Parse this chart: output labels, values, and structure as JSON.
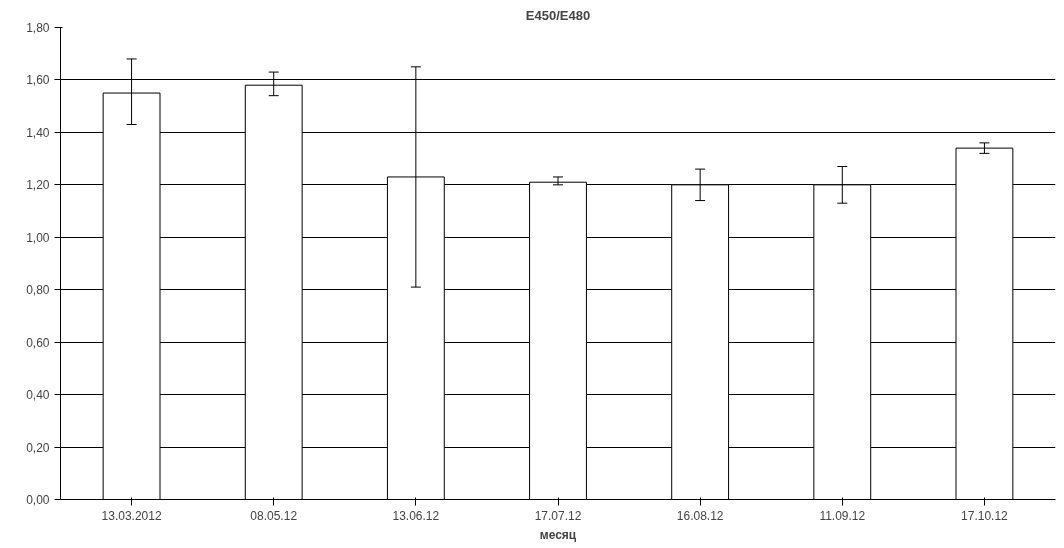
{
  "chart_data": {
    "type": "bar",
    "title": "E450/E480",
    "xlabel": "месяц",
    "categories": [
      "13.03.2012",
      "08.05.12",
      "13.06.12",
      "17.07.12",
      "16.08.12",
      "11.09.12",
      "17.10.12"
    ],
    "values": [
      1.55,
      1.58,
      1.23,
      1.21,
      1.2,
      1.2,
      1.34
    ],
    "errors": [
      [
        1.43,
        1.68
      ],
      [
        1.54,
        1.63
      ],
      [
        0.81,
        1.65
      ],
      [
        1.2,
        1.23
      ],
      [
        1.14,
        1.26
      ],
      [
        1.13,
        1.27
      ],
      [
        1.32,
        1.36
      ]
    ],
    "color": "#ffffff",
    "ylim": [
      0,
      1.8
    ],
    "yticks": [
      {
        "value": 0,
        "label": "0,00"
      },
      {
        "value": 0.2,
        "label": "0,20"
      },
      {
        "value": 0.4,
        "label": "0,40"
      },
      {
        "value": 0.6,
        "label": "0,60"
      },
      {
        "value": 0.8,
        "label": "0,80"
      },
      {
        "value": 1.0,
        "label": "1,00"
      },
      {
        "value": 1.2,
        "label": "1,20"
      },
      {
        "value": 1.4,
        "label": "1,40"
      },
      {
        "value": 1.6,
        "label": "1,60"
      },
      {
        "value": 1.8,
        "label": "1,80"
      }
    ],
    "grid": "y"
  }
}
